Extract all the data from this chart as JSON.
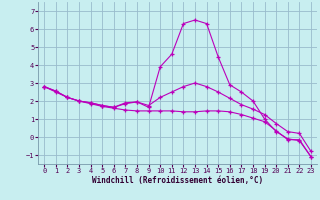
{
  "xlabel": "Windchill (Refroidissement éolien,°C)",
  "bg_color": "#c8eef0",
  "grid_color": "#99bbcc",
  "line_color": "#bb00bb",
  "xlim": [
    -0.5,
    23.5
  ],
  "ylim": [
    -1.5,
    7.5
  ],
  "yticks": [
    -1,
    0,
    1,
    2,
    3,
    4,
    5,
    6,
    7
  ],
  "xticks": [
    0,
    1,
    2,
    3,
    4,
    5,
    6,
    7,
    8,
    9,
    10,
    11,
    12,
    13,
    14,
    15,
    16,
    17,
    18,
    19,
    20,
    21,
    22,
    23
  ],
  "series_x": [
    0,
    1,
    2,
    3,
    4,
    5,
    6,
    7,
    8,
    9,
    10,
    11,
    12,
    13,
    14,
    15,
    16,
    17,
    18,
    19,
    20,
    21,
    22,
    23
  ],
  "series": [
    [
      2.8,
      2.5,
      2.2,
      2.0,
      1.85,
      1.7,
      1.6,
      1.5,
      1.45,
      1.45,
      1.45,
      1.45,
      1.4,
      1.4,
      1.45,
      1.45,
      1.4,
      1.25,
      1.05,
      0.85,
      0.35,
      -0.15,
      -0.15,
      -1.1
    ],
    [
      2.8,
      2.55,
      2.2,
      2.0,
      1.9,
      1.75,
      1.65,
      1.9,
      1.95,
      1.65,
      3.9,
      4.6,
      6.3,
      6.5,
      6.3,
      4.45,
      2.9,
      2.5,
      2.0,
      1.0,
      0.3,
      -0.1,
      -0.2,
      -1.1
    ],
    [
      2.8,
      2.55,
      2.2,
      2.0,
      1.9,
      1.75,
      1.65,
      1.85,
      1.95,
      1.75,
      2.2,
      2.5,
      2.8,
      3.0,
      2.8,
      2.5,
      2.15,
      1.8,
      1.55,
      1.25,
      0.75,
      0.3,
      0.2,
      -0.8
    ]
  ]
}
